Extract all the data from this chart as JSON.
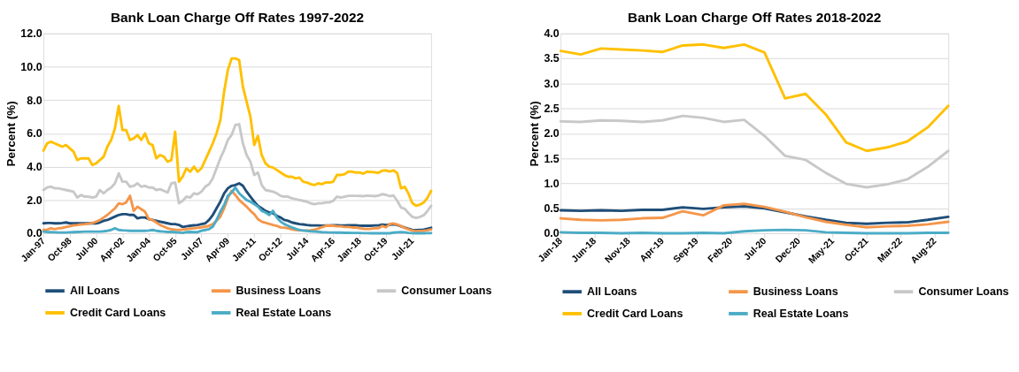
{
  "chart_data": [
    {
      "type": "line",
      "title": "Bank Loan Charge Off Rates 1997-2022",
      "ylabel": "Percent (%)",
      "x": [
        "1997-01",
        "1997-04",
        "1997-07",
        "1997-10",
        "1998-01",
        "1998-04",
        "1998-07",
        "1998-10",
        "1999-01",
        "1999-04",
        "1999-07",
        "1999-10",
        "2000-01",
        "2000-04",
        "2000-07",
        "2000-10",
        "2001-01",
        "2001-04",
        "2001-07",
        "2001-10",
        "2002-01",
        "2002-04",
        "2002-07",
        "2002-10",
        "2003-01",
        "2003-04",
        "2003-07",
        "2003-10",
        "2004-01",
        "2004-04",
        "2004-07",
        "2004-10",
        "2005-01",
        "2005-04",
        "2005-07",
        "2005-10",
        "2006-01",
        "2006-04",
        "2006-07",
        "2006-10",
        "2007-01",
        "2007-04",
        "2007-07",
        "2007-10",
        "2008-01",
        "2008-04",
        "2008-07",
        "2008-10",
        "2009-01",
        "2009-04",
        "2009-07",
        "2009-10",
        "2010-01",
        "2010-04",
        "2010-07",
        "2010-10",
        "2011-01",
        "2011-04",
        "2011-07",
        "2011-10",
        "2012-01",
        "2012-04",
        "2012-07",
        "2012-10",
        "2013-01",
        "2013-04",
        "2013-07",
        "2013-10",
        "2014-01",
        "2014-04",
        "2014-07",
        "2014-10",
        "2015-01",
        "2015-04",
        "2015-07",
        "2015-10",
        "2016-01",
        "2016-04",
        "2016-07",
        "2016-10",
        "2017-01",
        "2017-04",
        "2017-07",
        "2017-10",
        "2018-01",
        "2018-04",
        "2018-07",
        "2018-10",
        "2019-01",
        "2019-04",
        "2019-07",
        "2019-10",
        "2020-01",
        "2020-04",
        "2020-07",
        "2020-10",
        "2021-01",
        "2021-04",
        "2021-07",
        "2021-10",
        "2022-01",
        "2022-04",
        "2022-07",
        "2022-10"
      ],
      "series": [
        {
          "name": "All Loans",
          "color": "#1f4e79",
          "values": [
            0.6,
            0.62,
            0.62,
            0.6,
            0.6,
            0.62,
            0.65,
            0.6,
            0.6,
            0.6,
            0.6,
            0.6,
            0.6,
            0.6,
            0.6,
            0.65,
            0.75,
            0.8,
            0.9,
            1.0,
            1.1,
            1.15,
            1.15,
            1.1,
            1.1,
            0.9,
            0.95,
            0.95,
            0.85,
            0.8,
            0.75,
            0.7,
            0.65,
            0.6,
            0.55,
            0.55,
            0.5,
            0.38,
            0.42,
            0.45,
            0.48,
            0.5,
            0.55,
            0.6,
            0.8,
            1.1,
            1.5,
            1.9,
            2.4,
            2.7,
            2.85,
            2.9,
            3.0,
            2.85,
            2.5,
            2.2,
            1.9,
            1.65,
            1.5,
            1.35,
            1.25,
            1.2,
            1.05,
            0.95,
            0.8,
            0.75,
            0.65,
            0.6,
            0.55,
            0.53,
            0.5,
            0.48,
            0.47,
            0.47,
            0.46,
            0.47,
            0.47,
            0.48,
            0.48,
            0.47,
            0.47,
            0.48,
            0.48,
            0.48,
            0.46,
            0.45,
            0.46,
            0.45,
            0.47,
            0.47,
            0.52,
            0.49,
            0.52,
            0.54,
            0.5,
            0.42,
            0.34,
            0.27,
            0.21,
            0.19,
            0.21,
            0.22,
            0.27,
            0.33
          ]
        },
        {
          "name": "Business Loans",
          "color": "#f4964a",
          "values": [
            0.2,
            0.22,
            0.3,
            0.25,
            0.3,
            0.32,
            0.38,
            0.42,
            0.48,
            0.5,
            0.53,
            0.55,
            0.58,
            0.62,
            0.7,
            0.8,
            0.95,
            1.1,
            1.3,
            1.5,
            1.8,
            1.75,
            1.85,
            2.25,
            1.35,
            1.6,
            1.45,
            1.3,
            0.85,
            0.8,
            0.65,
            0.5,
            0.4,
            0.3,
            0.25,
            0.22,
            0.2,
            0.22,
            0.25,
            0.28,
            0.3,
            0.33,
            0.36,
            0.4,
            0.45,
            0.55,
            0.75,
            1.0,
            1.5,
            2.1,
            2.55,
            2.3,
            2.0,
            1.8,
            1.6,
            1.35,
            1.15,
            0.85,
            0.7,
            0.63,
            0.56,
            0.5,
            0.45,
            0.35,
            0.34,
            0.3,
            0.24,
            0.2,
            0.18,
            0.17,
            0.17,
            0.18,
            0.22,
            0.27,
            0.37,
            0.45,
            0.45,
            0.45,
            0.42,
            0.42,
            0.38,
            0.38,
            0.35,
            0.35,
            0.3,
            0.27,
            0.26,
            0.27,
            0.3,
            0.31,
            0.44,
            0.36,
            0.56,
            0.59,
            0.53,
            0.43,
            0.32,
            0.23,
            0.17,
            0.12,
            0.14,
            0.15,
            0.18,
            0.23
          ]
        },
        {
          "name": "Consumer Loans",
          "color": "#c8c8c8",
          "values": [
            2.6,
            2.75,
            2.8,
            2.7,
            2.7,
            2.65,
            2.6,
            2.55,
            2.5,
            2.15,
            2.3,
            2.2,
            2.2,
            2.15,
            2.2,
            2.6,
            2.4,
            2.6,
            2.75,
            3.0,
            3.6,
            3.1,
            3.1,
            2.8,
            2.85,
            3.0,
            2.8,
            2.85,
            2.75,
            2.75,
            2.6,
            2.65,
            2.55,
            2.45,
            3.0,
            3.05,
            1.8,
            1.95,
            2.2,
            2.15,
            2.4,
            2.35,
            2.5,
            2.8,
            2.95,
            3.3,
            3.9,
            4.5,
            5.0,
            5.6,
            5.9,
            6.5,
            6.55,
            5.4,
            4.7,
            4.3,
            3.5,
            3.65,
            2.9,
            2.6,
            2.55,
            2.5,
            2.4,
            2.25,
            2.2,
            2.2,
            2.1,
            2.05,
            2.0,
            1.95,
            1.9,
            1.8,
            1.75,
            1.8,
            1.8,
            1.85,
            1.85,
            1.95,
            2.2,
            2.15,
            2.2,
            2.25,
            2.25,
            2.25,
            2.24,
            2.23,
            2.26,
            2.25,
            2.23,
            2.26,
            2.35,
            2.31,
            2.23,
            2.27,
            1.95,
            1.55,
            1.47,
            1.21,
            0.99,
            0.92,
            0.98,
            1.08,
            1.33,
            1.65
          ]
        },
        {
          "name": "Credit Card Loans",
          "color": "#ffc000",
          "values": [
            4.97,
            5.4,
            5.5,
            5.4,
            5.3,
            5.2,
            5.3,
            5.1,
            4.9,
            4.4,
            4.5,
            4.5,
            4.5,
            4.1,
            4.2,
            4.4,
            4.6,
            5.2,
            5.6,
            6.3,
            7.65,
            6.2,
            6.2,
            5.6,
            5.7,
            5.9,
            5.6,
            6.0,
            5.4,
            5.3,
            4.5,
            4.7,
            4.6,
            4.3,
            4.4,
            6.1,
            3.1,
            3.4,
            3.9,
            3.7,
            4.0,
            3.7,
            3.9,
            4.4,
            4.9,
            5.4,
            6.0,
            6.8,
            8.5,
            9.8,
            10.5,
            10.5,
            10.4,
            8.8,
            7.9,
            7.0,
            5.3,
            5.85,
            4.7,
            4.2,
            4.0,
            3.95,
            3.8,
            3.65,
            3.5,
            3.4,
            3.4,
            3.3,
            3.35,
            3.1,
            3.05,
            2.95,
            2.9,
            3.0,
            2.95,
            3.05,
            3.05,
            3.1,
            3.5,
            3.5,
            3.55,
            3.7,
            3.7,
            3.65,
            3.65,
            3.58,
            3.7,
            3.68,
            3.66,
            3.63,
            3.76,
            3.78,
            3.71,
            3.78,
            3.62,
            2.7,
            2.79,
            2.38,
            1.82,
            1.65,
            1.72,
            1.84,
            2.12,
            2.55
          ]
        },
        {
          "name": "Real Estate Loans",
          "color": "#4bacc6",
          "values": [
            0.1,
            0.08,
            0.07,
            0.06,
            0.05,
            0.05,
            0.05,
            0.06,
            0.07,
            0.08,
            0.09,
            0.1,
            0.1,
            0.1,
            0.1,
            0.1,
            0.12,
            0.15,
            0.2,
            0.3,
            0.2,
            0.18,
            0.17,
            0.15,
            0.15,
            0.15,
            0.15,
            0.15,
            0.17,
            0.2,
            0.15,
            0.12,
            0.1,
            0.08,
            0.08,
            0.07,
            0.05,
            0.02,
            0.07,
            0.08,
            0.07,
            0.07,
            0.15,
            0.2,
            0.25,
            0.4,
            0.8,
            1.3,
            1.7,
            2.25,
            2.45,
            2.75,
            2.4,
            2.2,
            2.0,
            1.9,
            1.75,
            1.6,
            1.35,
            1.25,
            1.1,
            1.35,
            0.95,
            0.7,
            0.55,
            0.45,
            0.35,
            0.27,
            0.2,
            0.17,
            0.15,
            0.12,
            0.11,
            0.09,
            0.07,
            0.06,
            0.05,
            0.05,
            0.04,
            0.04,
            0.03,
            0.03,
            0.02,
            0.02,
            0.02,
            0.01,
            0.01,
            0.0,
            0.01,
            0.0,
            0.0,
            0.01,
            0.0,
            0.04,
            0.06,
            0.07,
            0.06,
            0.02,
            0.01,
            0.0,
            0.0,
            0.0,
            0.01,
            0.01
          ]
        }
      ],
      "xlim": [
        "1997-01",
        "2022-10"
      ],
      "xticks": [
        {
          "value": "1997-01",
          "label": "Jan-97"
        },
        {
          "value": "1998-10",
          "label": "Oct-98"
        },
        {
          "value": "2000-07",
          "label": "Jul-00"
        },
        {
          "value": "2002-04",
          "label": "Apr-02"
        },
        {
          "value": "2004-01",
          "label": "Jan-04"
        },
        {
          "value": "2005-10",
          "label": "Oct-05"
        },
        {
          "value": "2007-07",
          "label": "Jul-07"
        },
        {
          "value": "2009-04",
          "label": "Apr-09"
        },
        {
          "value": "2011-01",
          "label": "Jan-11"
        },
        {
          "value": "2012-10",
          "label": "Oct-12"
        },
        {
          "value": "2014-07",
          "label": "Jul-14"
        },
        {
          "value": "2016-04",
          "label": "Apr-16"
        },
        {
          "value": "2018-01",
          "label": "Jan-18"
        },
        {
          "value": "2019-10",
          "label": "Oct-19"
        },
        {
          "value": "2021-07",
          "label": "Jul-21"
        }
      ],
      "ylim": [
        0,
        12
      ],
      "yticks": [
        {
          "value": 0,
          "label": "0.0"
        },
        {
          "value": 2,
          "label": "2.0"
        },
        {
          "value": 4,
          "label": "4.0"
        },
        {
          "value": 6,
          "label": "6.0"
        },
        {
          "value": 8,
          "label": "8.0"
        },
        {
          "value": 10,
          "label": "10.0"
        },
        {
          "value": 12,
          "label": "12.0"
        }
      ],
      "grid": "y",
      "legend": "bottom"
    },
    {
      "type": "line",
      "title": "Bank Loan Charge Off Rates 2018-2022",
      "ylabel": "Percent (%)",
      "x": [
        "2018-01",
        "2018-04",
        "2018-07",
        "2018-10",
        "2019-01",
        "2019-04",
        "2019-07",
        "2019-10",
        "2020-01",
        "2020-04",
        "2020-07",
        "2020-10",
        "2021-01",
        "2021-04",
        "2021-07",
        "2021-10",
        "2022-01",
        "2022-04",
        "2022-07",
        "2022-10"
      ],
      "series": [
        {
          "name": "All Loans",
          "color": "#1f4e79",
          "values": [
            0.46,
            0.45,
            0.46,
            0.45,
            0.47,
            0.47,
            0.52,
            0.49,
            0.52,
            0.54,
            0.5,
            0.42,
            0.34,
            0.27,
            0.21,
            0.19,
            0.21,
            0.22,
            0.27,
            0.33
          ]
        },
        {
          "name": "Business Loans",
          "color": "#f4964a",
          "values": [
            0.3,
            0.27,
            0.26,
            0.27,
            0.3,
            0.31,
            0.44,
            0.36,
            0.56,
            0.59,
            0.53,
            0.43,
            0.32,
            0.23,
            0.17,
            0.12,
            0.14,
            0.15,
            0.18,
            0.23
          ]
        },
        {
          "name": "Consumer Loans",
          "color": "#c8c8c8",
          "values": [
            2.24,
            2.23,
            2.26,
            2.25,
            2.23,
            2.26,
            2.35,
            2.31,
            2.23,
            2.27,
            1.95,
            1.55,
            1.47,
            1.21,
            0.99,
            0.92,
            0.98,
            1.08,
            1.33,
            1.65
          ]
        },
        {
          "name": "Credit Card Loans",
          "color": "#ffc000",
          "values": [
            3.65,
            3.58,
            3.7,
            3.68,
            3.66,
            3.63,
            3.76,
            3.78,
            3.71,
            3.78,
            3.62,
            2.7,
            2.79,
            2.38,
            1.82,
            1.65,
            1.72,
            1.84,
            2.12,
            2.55
          ]
        },
        {
          "name": "Real Estate Loans",
          "color": "#4bacc6",
          "values": [
            0.02,
            0.01,
            0.01,
            0.0,
            0.01,
            0.0,
            0.0,
            0.01,
            0.0,
            0.04,
            0.06,
            0.07,
            0.06,
            0.02,
            0.01,
            0.0,
            0.0,
            0.0,
            0.01,
            0.01
          ]
        }
      ],
      "xlim": [
        "2018-01",
        "2022-10"
      ],
      "xticks": [
        {
          "value": "2018-01",
          "label": "Jan-18"
        },
        {
          "value": "2018-06",
          "label": "Jun-18"
        },
        {
          "value": "2018-11",
          "label": "Nov-18"
        },
        {
          "value": "2019-04",
          "label": "Apr-19"
        },
        {
          "value": "2019-09",
          "label": "Sep-19"
        },
        {
          "value": "2020-02",
          "label": "Feb-20"
        },
        {
          "value": "2020-07",
          "label": "Jul-20"
        },
        {
          "value": "2020-12",
          "label": "Dec-20"
        },
        {
          "value": "2021-05",
          "label": "May-21"
        },
        {
          "value": "2021-10",
          "label": "Oct-21"
        },
        {
          "value": "2022-03",
          "label": "Mar-22"
        },
        {
          "value": "2022-08",
          "label": "Aug-22"
        }
      ],
      "ylim": [
        0,
        4
      ],
      "yticks": [
        {
          "value": 0,
          "label": "0.0"
        },
        {
          "value": 0.5,
          "label": "0.5"
        },
        {
          "value": 1,
          "label": "1.0"
        },
        {
          "value": 1.5,
          "label": "1.5"
        },
        {
          "value": 2,
          "label": "2.0"
        },
        {
          "value": 2.5,
          "label": "2.5"
        },
        {
          "value": 3,
          "label": "3.0"
        },
        {
          "value": 3.5,
          "label": "3.5"
        },
        {
          "value": 4,
          "label": "4.0"
        }
      ],
      "grid": "y",
      "legend": "bottom"
    }
  ]
}
